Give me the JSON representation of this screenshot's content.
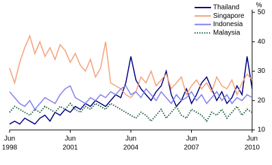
{
  "chart_data": {
    "type": "line",
    "y_unit": "%",
    "x": [
      1998.42,
      1998.67,
      1998.92,
      1999.17,
      1999.42,
      1999.67,
      1999.92,
      2000.17,
      2000.42,
      2000.67,
      2000.92,
      2001.17,
      2001.42,
      2001.67,
      2001.92,
      2002.17,
      2002.42,
      2002.67,
      2002.92,
      2003.17,
      2003.42,
      2003.67,
      2003.92,
      2004.17,
      2004.42,
      2004.67,
      2004.92,
      2005.17,
      2005.42,
      2005.67,
      2005.92,
      2006.17,
      2006.42,
      2006.67,
      2006.92,
      2007.17,
      2007.42,
      2007.67,
      2007.92,
      2008.17,
      2008.42,
      2008.67,
      2008.92,
      2009.17,
      2009.42,
      2009.67,
      2009.92,
      2010.17,
      2010.42
    ],
    "series": [
      {
        "name": "Thailand",
        "color": "#000080",
        "style": "solid",
        "values": [
          12,
          13,
          12,
          14,
          13,
          12,
          14,
          15,
          13,
          16,
          15,
          17,
          16,
          18,
          17,
          19,
          18,
          20,
          19,
          18,
          20,
          22,
          21,
          26,
          35,
          27,
          24,
          22,
          20,
          23,
          25,
          30,
          22,
          18,
          20,
          24,
          19,
          22,
          26,
          28,
          24,
          20,
          23,
          19,
          21,
          25,
          22,
          35,
          24
        ]
      },
      {
        "name": "Singapore",
        "color": "#f4a07a",
        "style": "solid",
        "values": [
          31,
          26,
          33,
          38,
          42,
          36,
          40,
          35,
          38,
          34,
          39,
          37,
          33,
          36,
          32,
          30,
          34,
          28,
          31,
          40,
          26,
          25,
          24,
          22,
          21,
          23,
          28,
          26,
          30,
          25,
          27,
          29,
          24,
          26,
          28,
          22,
          25,
          27,
          24,
          26,
          23,
          28,
          25,
          24,
          27,
          22,
          26,
          29,
          27
        ]
      },
      {
        "name": "Indonesia",
        "color": "#8080f0",
        "style": "solid",
        "values": [
          23,
          21,
          19,
          18,
          20,
          17,
          19,
          21,
          20,
          19,
          22,
          24,
          25,
          21,
          20,
          19,
          21,
          20,
          22,
          21,
          23,
          22,
          24,
          25,
          22,
          23,
          21,
          24,
          22,
          20,
          23,
          21,
          19,
          22,
          20,
          21,
          23,
          20,
          22,
          19,
          21,
          23,
          20,
          22,
          19,
          21,
          20,
          22,
          21
        ]
      },
      {
        "name": "Malaysia",
        "color": "#1a5c3a",
        "style": "dotted",
        "values": [
          16,
          18,
          17,
          16,
          15,
          17,
          16,
          18,
          17,
          16,
          18,
          17,
          19,
          17,
          16,
          18,
          17,
          19,
          18,
          17,
          19,
          18,
          17,
          16,
          15,
          14,
          16,
          15,
          13,
          15,
          17,
          14,
          16,
          18,
          15,
          14,
          17,
          16,
          15,
          13,
          16,
          15,
          17,
          14,
          16,
          18,
          15,
          17,
          16
        ]
      }
    ],
    "xlim": [
      1998.42,
      2010.42
    ],
    "xticks": [
      {
        "value": 1998.42,
        "label": "Jun",
        "sublabel": "1998"
      },
      {
        "value": 2001.42,
        "label": "Jun",
        "sublabel": "2001"
      },
      {
        "value": 2004.42,
        "label": "Jun",
        "sublabel": "2004"
      },
      {
        "value": 2007.42,
        "label": "Jun",
        "sublabel": "2007"
      },
      {
        "value": 2010.42,
        "label": "Jun",
        "sublabel": "2010"
      }
    ],
    "ylim": [
      10,
      50
    ],
    "yticks": [
      10,
      20,
      30,
      40,
      50
    ],
    "legend": "top-right"
  }
}
